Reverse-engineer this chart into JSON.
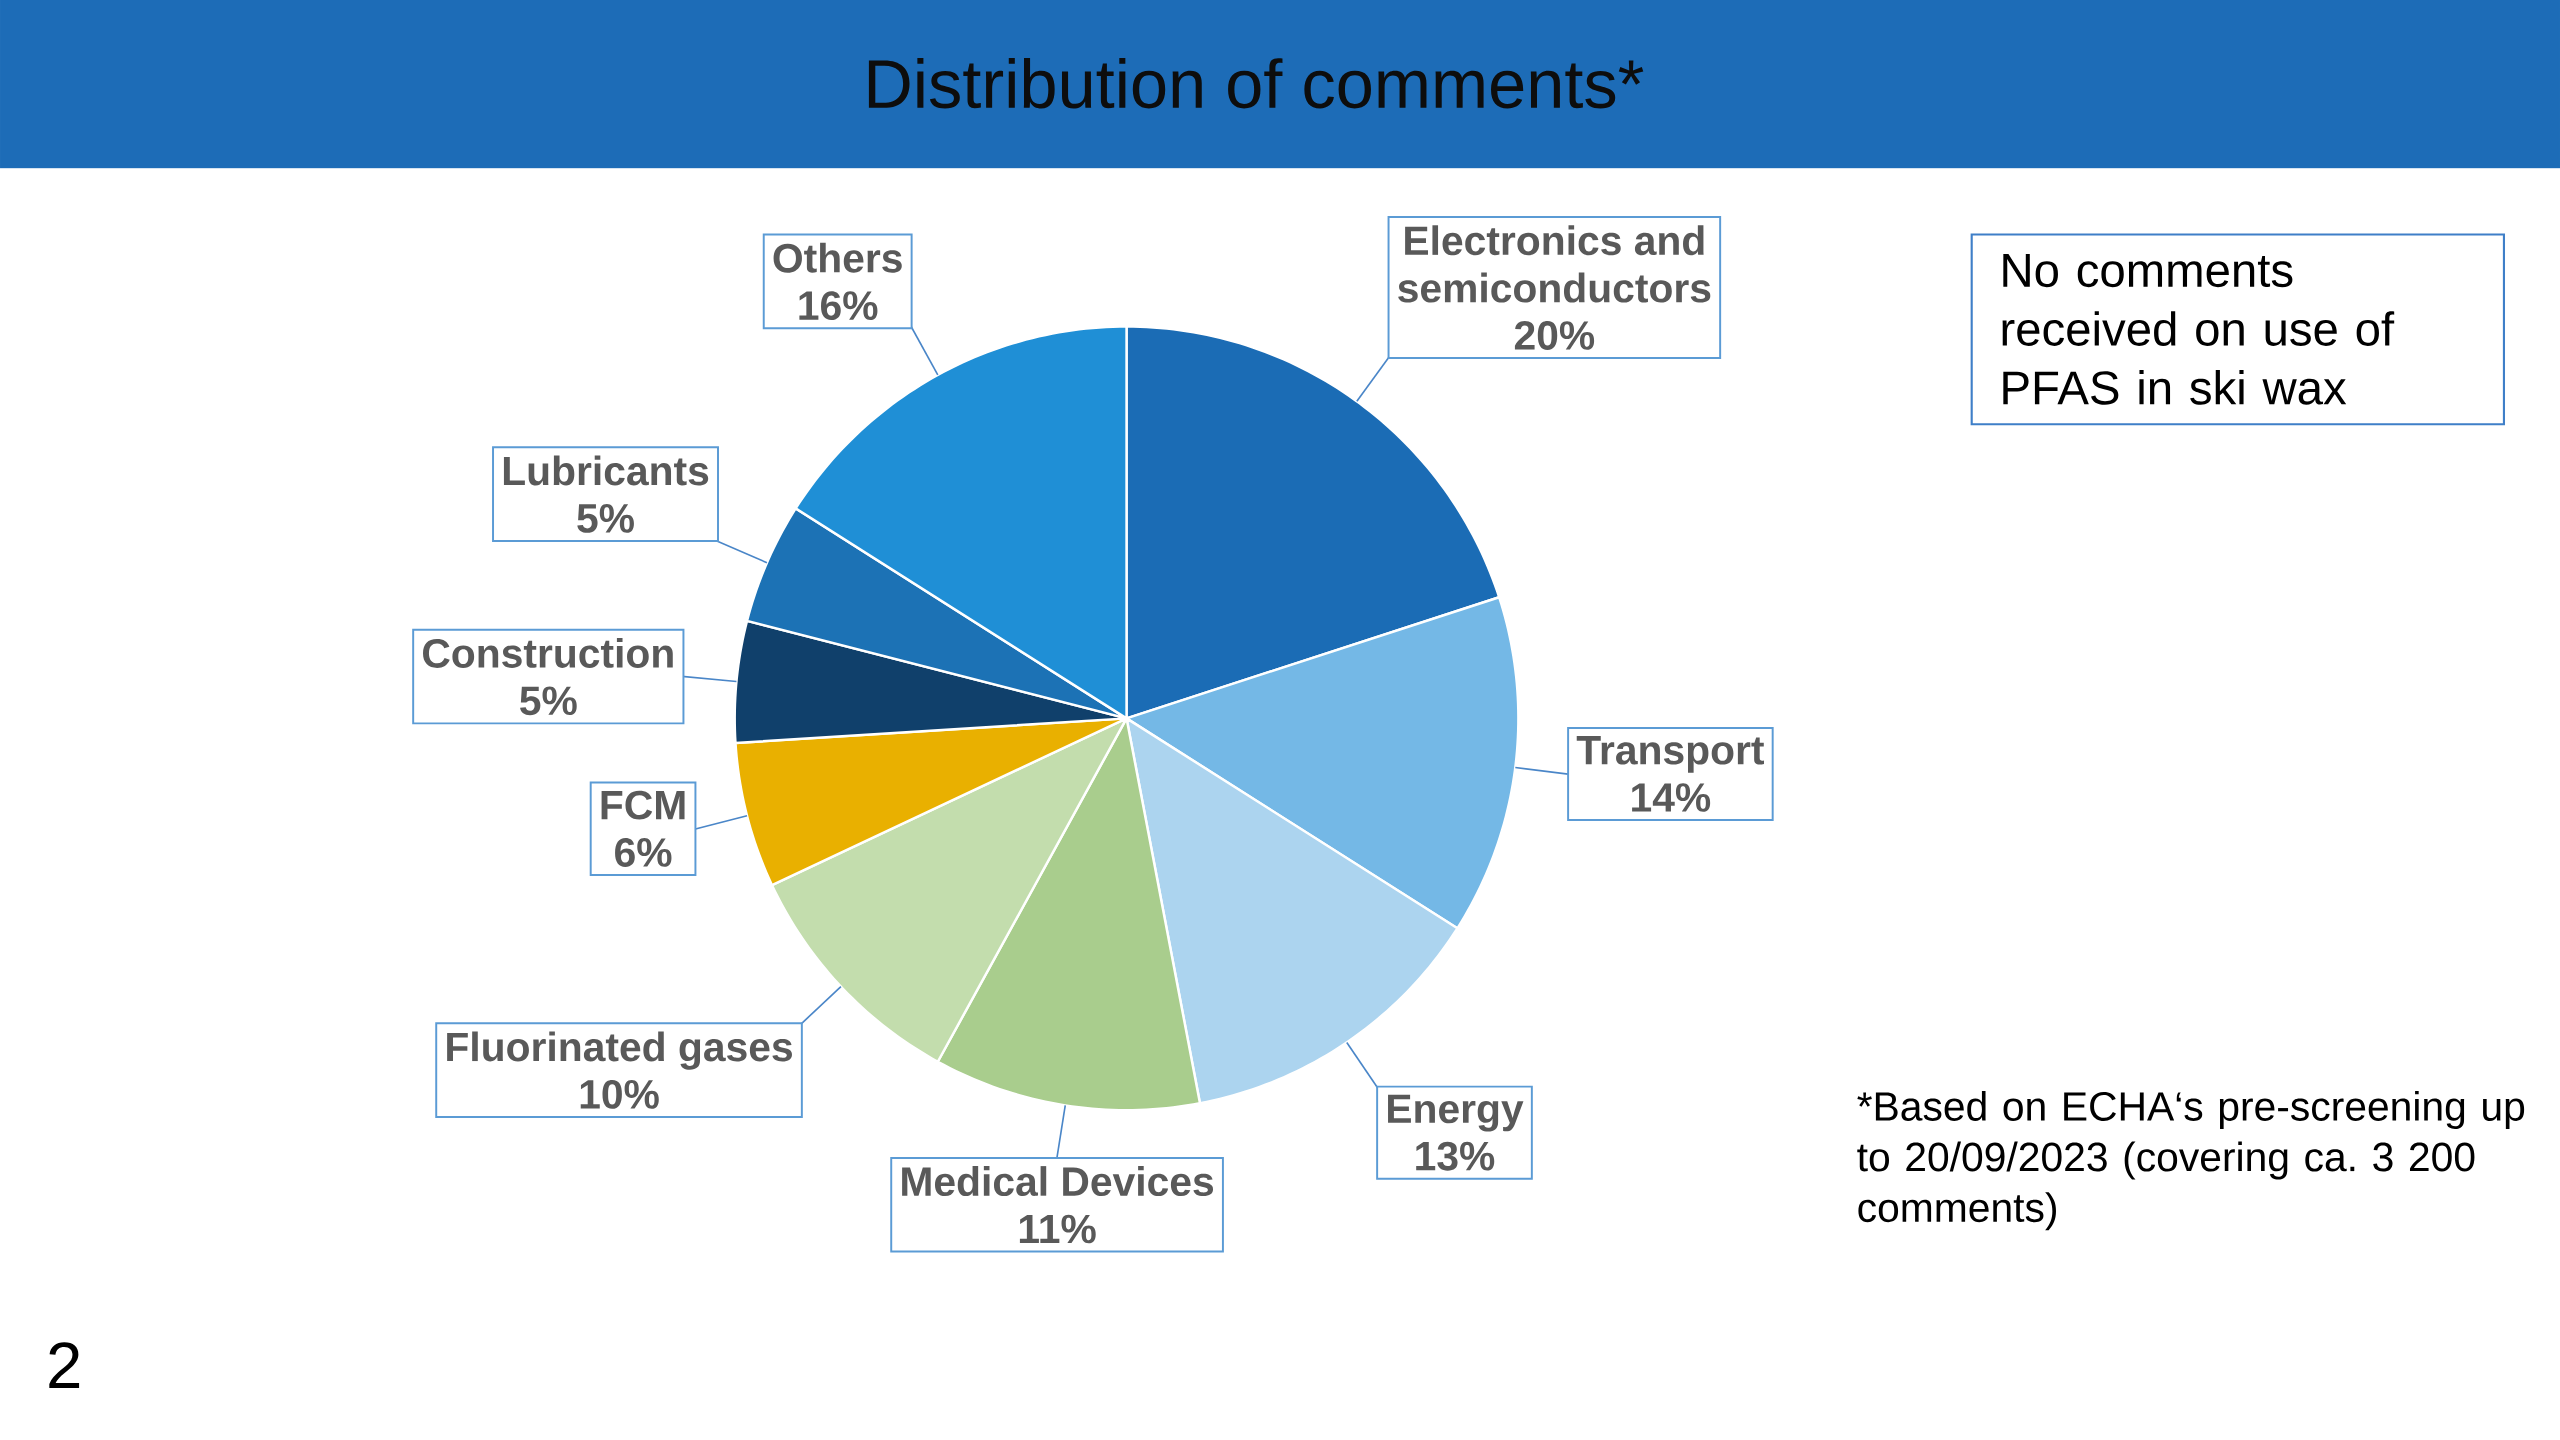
{
  "chart_data": {
    "type": "pie",
    "title": "Distribution of comments*",
    "categories": [
      "Electronics and semiconductors",
      "Transport",
      "Energy",
      "Medical Devices",
      "Fluorinated gases",
      "FCM",
      "Construction",
      "Lubricants",
      "Others"
    ],
    "values": [
      20,
      14,
      13,
      11,
      10,
      6,
      5,
      5,
      16
    ],
    "value_labels": [
      "20%",
      "14%",
      "13%",
      "11%",
      "10%",
      "6%",
      "5%",
      "5%",
      "16%"
    ],
    "colors": [
      "#1b6cb5",
      "#74b8e6",
      "#acd4ef",
      "#a9cd8d",
      "#c3ddad",
      "#e9b000",
      "#10406b",
      "#1c72b5",
      "#1f8fd6"
    ],
    "annotations": [
      "No comments received on use of PFAS in ski wax",
      "*Based on ECHA‘s pre-screening up to 20/09/2023 (covering ca. 3 200 comments)",
      "2"
    ]
  }
}
